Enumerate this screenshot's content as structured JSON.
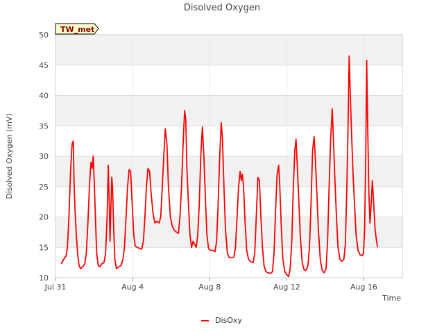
{
  "chart_data": {
    "type": "line",
    "title": "Disolved Oxygen",
    "xlabel": "Time",
    "ylabel": "Disolved Oxygen (mV)",
    "site_label": "TW_met",
    "ylim": [
      10,
      50
    ],
    "yticks": [
      10,
      15,
      20,
      25,
      30,
      35,
      40,
      45,
      50
    ],
    "xlim_days": [
      0,
      18
    ],
    "xticks": [
      {
        "label": "Jul 31",
        "day": 0
      },
      {
        "label": "Aug 4",
        "day": 4
      },
      {
        "label": "Aug 8",
        "day": 8
      },
      {
        "label": "Aug 12",
        "day": 12
      },
      {
        "label": "Aug 16",
        "day": 16
      }
    ],
    "grid": true,
    "legend_position": "bottom",
    "series": [
      {
        "name": "DisOxy",
        "color": "#ff0000",
        "points": [
          [
            0.3,
            12.3
          ],
          [
            0.42,
            13.0
          ],
          [
            0.55,
            13.6
          ],
          [
            0.62,
            15.0
          ],
          [
            0.7,
            20.0
          ],
          [
            0.78,
            27.5
          ],
          [
            0.86,
            32.0
          ],
          [
            0.92,
            32.5
          ],
          [
            0.97,
            25.0
          ],
          [
            1.02,
            20.8
          ],
          [
            1.08,
            17.0
          ],
          [
            1.15,
            14.0
          ],
          [
            1.22,
            12.0
          ],
          [
            1.3,
            11.5
          ],
          [
            1.42,
            11.8
          ],
          [
            1.52,
            12.3
          ],
          [
            1.6,
            14.0
          ],
          [
            1.68,
            19.0
          ],
          [
            1.76,
            25.0
          ],
          [
            1.84,
            29.0
          ],
          [
            1.9,
            28.0
          ],
          [
            1.96,
            30.0
          ],
          [
            2.02,
            25.0
          ],
          [
            2.08,
            19.0
          ],
          [
            2.14,
            14.0
          ],
          [
            2.22,
            12.0
          ],
          [
            2.3,
            11.8
          ],
          [
            2.4,
            12.3
          ],
          [
            2.52,
            12.5
          ],
          [
            2.6,
            14.0
          ],
          [
            2.68,
            20.0
          ],
          [
            2.74,
            28.5
          ],
          [
            2.79,
            22.0
          ],
          [
            2.83,
            16.0
          ],
          [
            2.88,
            22.0
          ],
          [
            2.92,
            26.5
          ],
          [
            2.96,
            25.0
          ],
          [
            3.02,
            18.0
          ],
          [
            3.08,
            13.0
          ],
          [
            3.16,
            11.5
          ],
          [
            3.28,
            11.8
          ],
          [
            3.4,
            12.0
          ],
          [
            3.5,
            13.0
          ],
          [
            3.58,
            15.0
          ],
          [
            3.66,
            20.0
          ],
          [
            3.74,
            25.0
          ],
          [
            3.82,
            27.8
          ],
          [
            3.9,
            27.5
          ],
          [
            3.98,
            22.0
          ],
          [
            4.06,
            17.0
          ],
          [
            4.14,
            15.2
          ],
          [
            4.24,
            15.0
          ],
          [
            4.36,
            14.8
          ],
          [
            4.48,
            14.7
          ],
          [
            4.56,
            16.0
          ],
          [
            4.64,
            20.0
          ],
          [
            4.72,
            25.0
          ],
          [
            4.8,
            28.0
          ],
          [
            4.88,
            27.5
          ],
          [
            4.96,
            24.0
          ],
          [
            5.06,
            20.5
          ],
          [
            5.16,
            19.0
          ],
          [
            5.26,
            19.3
          ],
          [
            5.38,
            19.0
          ],
          [
            5.46,
            20.0
          ],
          [
            5.54,
            25.0
          ],
          [
            5.62,
            30.0
          ],
          [
            5.7,
            34.5
          ],
          [
            5.78,
            32.0
          ],
          [
            5.86,
            25.0
          ],
          [
            5.96,
            20.0
          ],
          [
            6.06,
            18.5
          ],
          [
            6.16,
            17.8
          ],
          [
            6.28,
            17.5
          ],
          [
            6.38,
            17.3
          ],
          [
            6.46,
            20.0
          ],
          [
            6.54,
            25.0
          ],
          [
            6.62,
            32.0
          ],
          [
            6.7,
            37.5
          ],
          [
            6.76,
            36.0
          ],
          [
            6.82,
            28.0
          ],
          [
            6.9,
            22.0
          ],
          [
            6.98,
            17.0
          ],
          [
            7.06,
            15.0
          ],
          [
            7.14,
            16.0
          ],
          [
            7.22,
            15.5
          ],
          [
            7.3,
            15.0
          ],
          [
            7.38,
            17.0
          ],
          [
            7.46,
            22.0
          ],
          [
            7.54,
            30.0
          ],
          [
            7.62,
            34.8
          ],
          [
            7.7,
            30.0
          ],
          [
            7.78,
            23.0
          ],
          [
            7.86,
            17.0
          ],
          [
            7.94,
            14.8
          ],
          [
            8.04,
            14.5
          ],
          [
            8.16,
            14.5
          ],
          [
            8.28,
            14.3
          ],
          [
            8.36,
            16.0
          ],
          [
            8.44,
            22.0
          ],
          [
            8.52,
            30.0
          ],
          [
            8.6,
            35.5
          ],
          [
            8.66,
            33.0
          ],
          [
            8.74,
            25.0
          ],
          [
            8.82,
            18.0
          ],
          [
            8.92,
            14.0
          ],
          [
            9.02,
            13.3
          ],
          [
            9.14,
            13.3
          ],
          [
            9.26,
            13.4
          ],
          [
            9.34,
            15.0
          ],
          [
            9.42,
            20.0
          ],
          [
            9.5,
            25.0
          ],
          [
            9.58,
            27.5
          ],
          [
            9.64,
            26.0
          ],
          [
            9.7,
            27.0
          ],
          [
            9.76,
            25.0
          ],
          [
            9.84,
            19.0
          ],
          [
            9.92,
            14.5
          ],
          [
            10.02,
            13.0
          ],
          [
            10.14,
            12.6
          ],
          [
            10.26,
            12.5
          ],
          [
            10.34,
            14.0
          ],
          [
            10.42,
            20.0
          ],
          [
            10.5,
            26.5
          ],
          [
            10.58,
            26.0
          ],
          [
            10.66,
            20.0
          ],
          [
            10.74,
            15.0
          ],
          [
            10.82,
            12.0
          ],
          [
            10.92,
            11.0
          ],
          [
            11.04,
            10.8
          ],
          [
            11.16,
            10.7
          ],
          [
            11.26,
            11.0
          ],
          [
            11.34,
            14.0
          ],
          [
            11.42,
            21.0
          ],
          [
            11.5,
            27.0
          ],
          [
            11.58,
            28.5
          ],
          [
            11.64,
            25.0
          ],
          [
            11.72,
            18.0
          ],
          [
            11.8,
            13.0
          ],
          [
            11.9,
            11.0
          ],
          [
            12.0,
            10.5
          ],
          [
            12.1,
            10.2
          ],
          [
            12.18,
            11.5
          ],
          [
            12.26,
            16.0
          ],
          [
            12.34,
            25.0
          ],
          [
            12.42,
            31.0
          ],
          [
            12.48,
            32.8
          ],
          [
            12.54,
            29.0
          ],
          [
            12.62,
            23.0
          ],
          [
            12.7,
            17.0
          ],
          [
            12.8,
            12.5
          ],
          [
            12.9,
            11.3
          ],
          [
            13.0,
            11.2
          ],
          [
            13.1,
            12.0
          ],
          [
            13.18,
            15.0
          ],
          [
            13.26,
            22.0
          ],
          [
            13.34,
            31.0
          ],
          [
            13.42,
            33.2
          ],
          [
            13.48,
            30.0
          ],
          [
            13.56,
            24.0
          ],
          [
            13.64,
            18.0
          ],
          [
            13.74,
            13.0
          ],
          [
            13.84,
            11.2
          ],
          [
            13.94,
            10.8
          ],
          [
            14.04,
            11.5
          ],
          [
            14.12,
            16.0
          ],
          [
            14.2,
            25.0
          ],
          [
            14.28,
            33.0
          ],
          [
            14.36,
            37.8
          ],
          [
            14.42,
            33.0
          ],
          [
            14.5,
            26.0
          ],
          [
            14.58,
            20.0
          ],
          [
            14.66,
            15.0
          ],
          [
            14.76,
            13.0
          ],
          [
            14.86,
            12.7
          ],
          [
            14.96,
            13.0
          ],
          [
            15.04,
            15.5
          ],
          [
            15.12,
            25.0
          ],
          [
            15.18,
            35.0
          ],
          [
            15.24,
            46.5
          ],
          [
            15.3,
            40.0
          ],
          [
            15.36,
            34.0
          ],
          [
            15.44,
            27.0
          ],
          [
            15.52,
            22.0
          ],
          [
            15.6,
            17.0
          ],
          [
            15.7,
            14.5
          ],
          [
            15.8,
            13.8
          ],
          [
            15.9,
            13.6
          ],
          [
            15.98,
            14.0
          ],
          [
            16.04,
            18.0
          ],
          [
            16.1,
            30.0
          ],
          [
            16.15,
            45.8
          ],
          [
            16.2,
            35.0
          ],
          [
            16.26,
            24.0
          ],
          [
            16.32,
            19.0
          ],
          [
            16.38,
            22.0
          ],
          [
            16.44,
            26.0
          ],
          [
            16.5,
            23.0
          ],
          [
            16.58,
            18.0
          ],
          [
            16.66,
            16.0
          ],
          [
            16.72,
            15.0
          ]
        ]
      }
    ]
  }
}
